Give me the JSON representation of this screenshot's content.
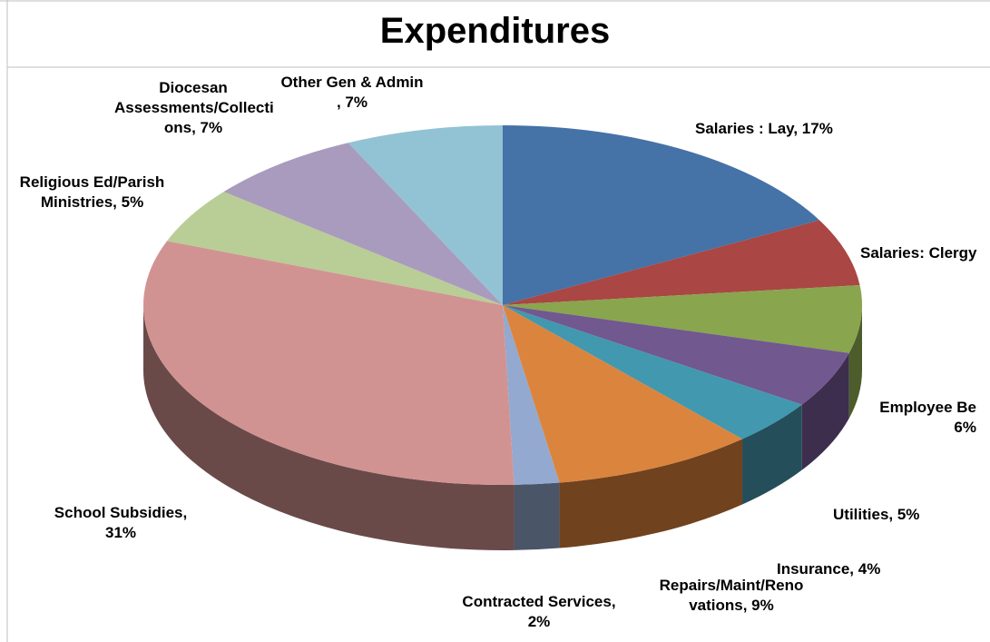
{
  "chart_data": {
    "type": "pie",
    "style": "3d-exploded-none",
    "title": "Expenditures",
    "slices": [
      {
        "name": "Salaries : Lay",
        "value": 17,
        "color": "#4572A7",
        "side": "#2B4A6F",
        "label": [
          "Salaries : Lay, 17%"
        ]
      },
      {
        "name": "Salaries: Clergy",
        "value": 6,
        "color": "#AA4643",
        "side": "#6E2B29",
        "label": [
          "Salaries: Clergy"
        ]
      },
      {
        "name": "Employee Benefits",
        "value": 6,
        "color": "#89A54E",
        "side": "#4D5C2B",
        "label": [
          "Employee Be",
          "6%"
        ]
      },
      {
        "name": "Utilities",
        "value": 5,
        "color": "#71588F",
        "side": "#3D2E4E",
        "label": [
          "Utilities, 5%"
        ]
      },
      {
        "name": "Insurance",
        "value": 4,
        "color": "#4198AF",
        "side": "#234E5A",
        "label": [
          "Insurance, 4%"
        ]
      },
      {
        "name": "Repairs/Maint/Renovations",
        "value": 9,
        "color": "#DB843D",
        "side": "#70421E",
        "label": [
          "Repairs/Maint/Reno",
          "vations, 9%"
        ]
      },
      {
        "name": "Contracted Services",
        "value": 2,
        "color": "#93A9CF",
        "side": "#4A5568",
        "label": [
          "Contracted Services,",
          "2%"
        ]
      },
      {
        "name": "School Subsidies",
        "value": 31,
        "color": "#D19392",
        "side": "#6A4A48",
        "label": [
          "School Subsidies,",
          "31%"
        ]
      },
      {
        "name": "Religious Ed/Parish Ministries",
        "value": 5,
        "color": "#B9CD96",
        "side": "#5E6A4A",
        "label": [
          "Religious Ed/Parish",
          "Ministries, 5%"
        ]
      },
      {
        "name": "Diocesan Assessments/Collections",
        "value": 7,
        "color": "#A99BBD",
        "side": "#564E60",
        "label": [
          "Diocesan",
          "Assessments/Collecti",
          "ons, 7%"
        ]
      },
      {
        "name": "Other Gen & Admin",
        "value": 7,
        "color": "#92C3D4",
        "side": "#4A636C",
        "label": [
          "Other Gen &  Admin",
          ", 7%"
        ]
      }
    ]
  }
}
